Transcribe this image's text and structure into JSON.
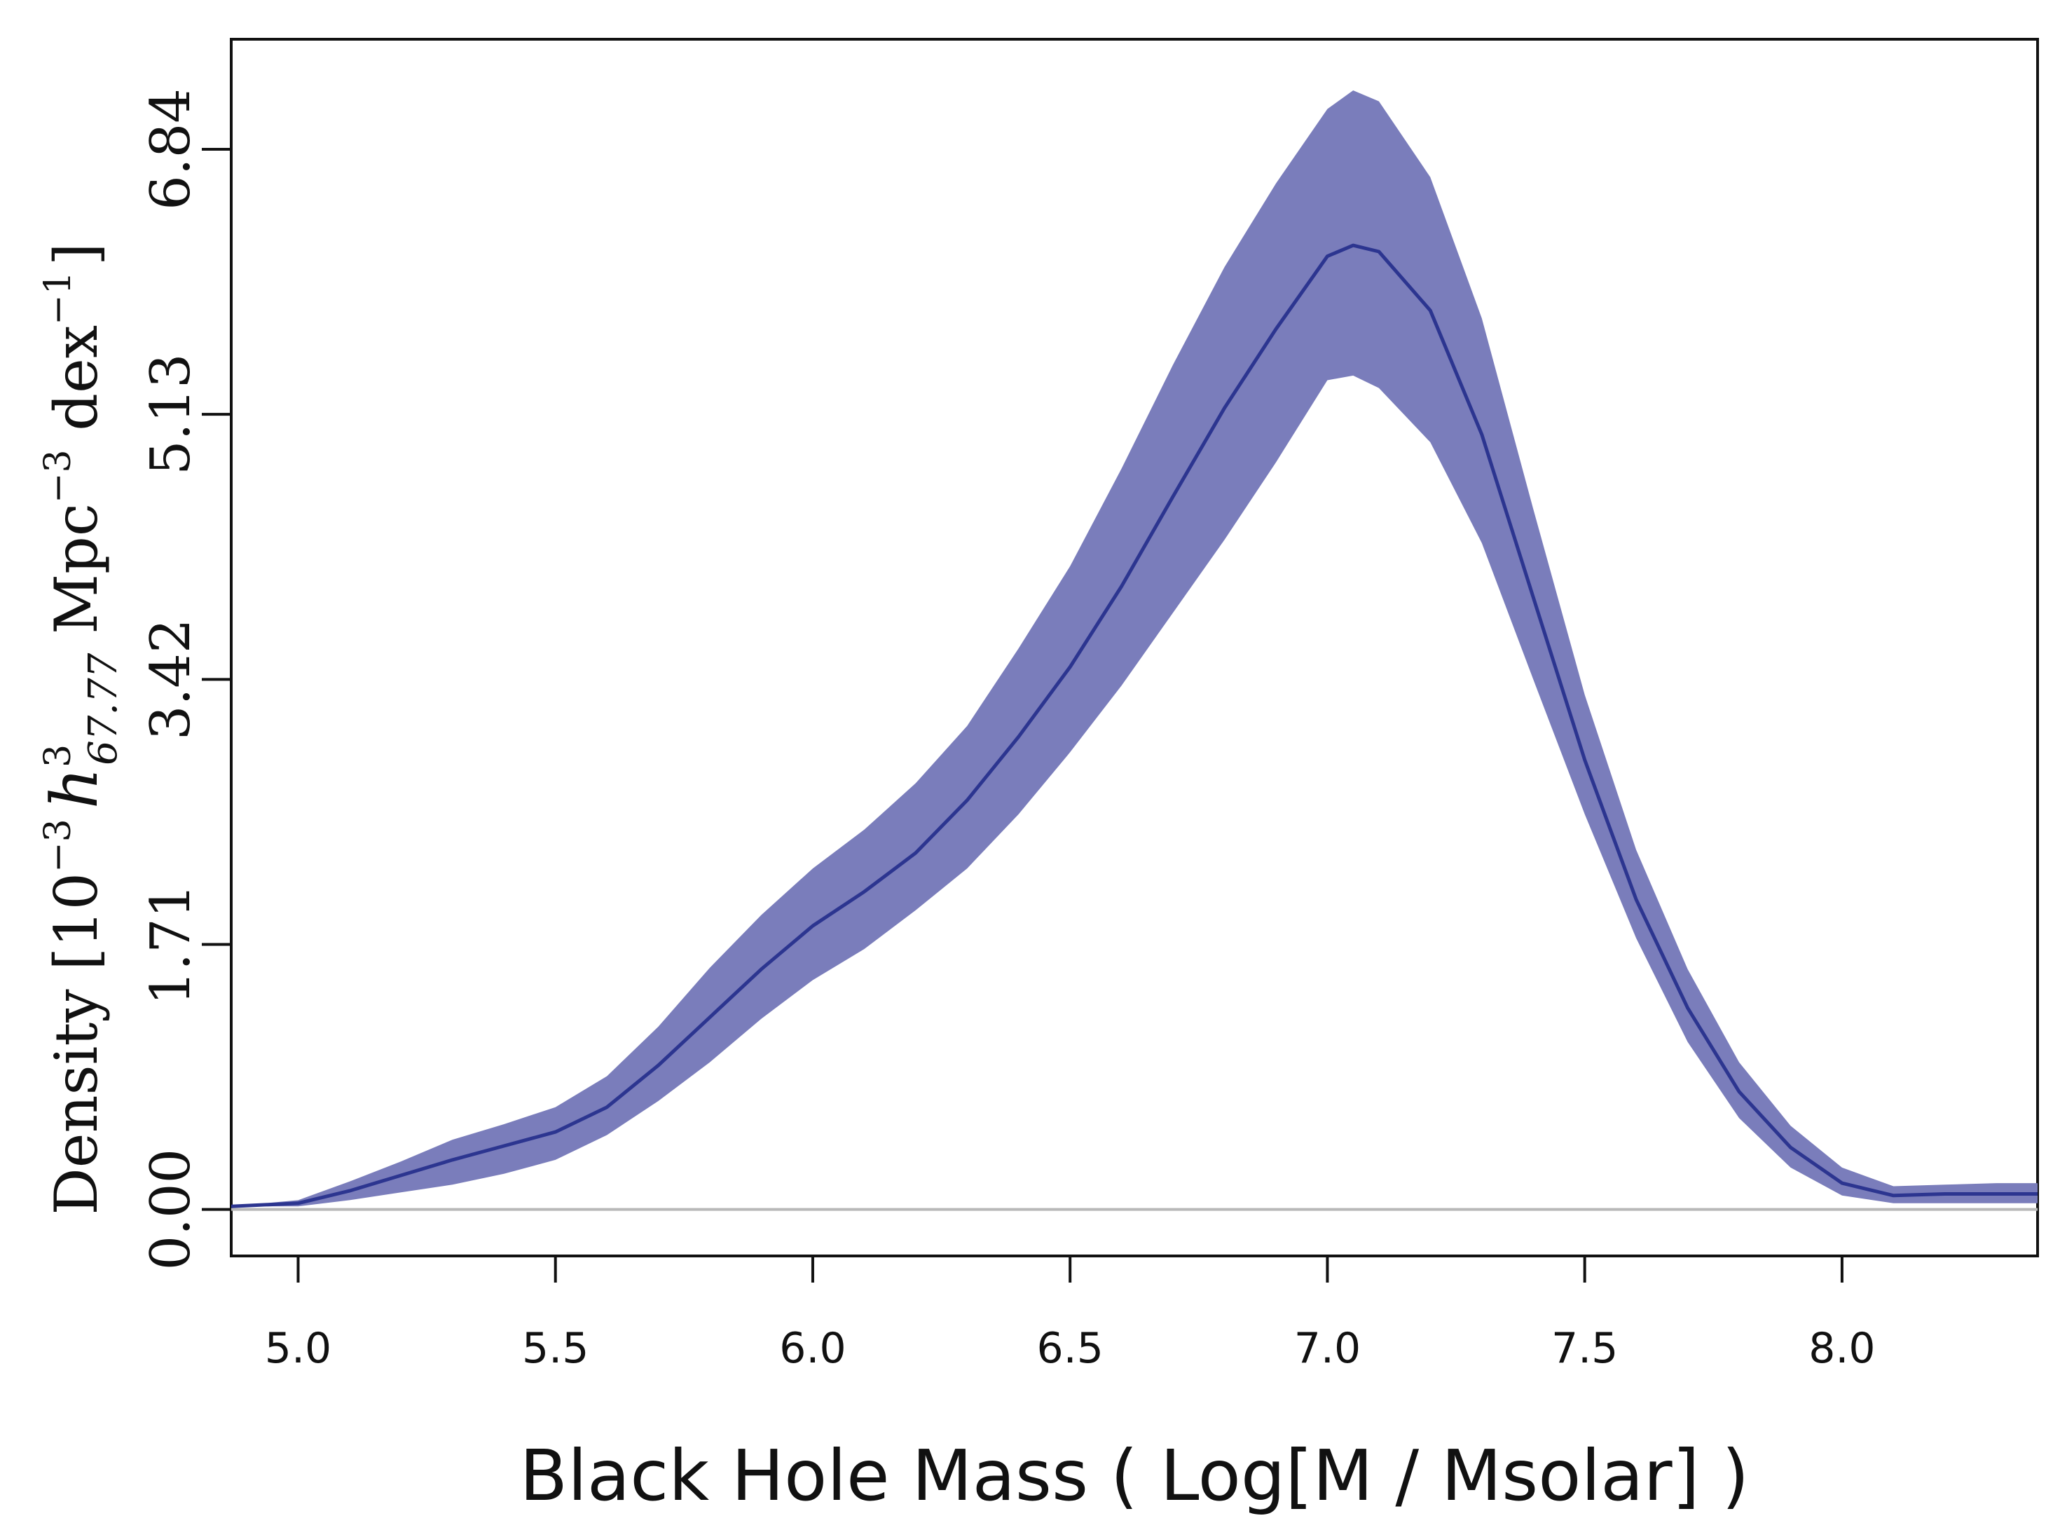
{
  "chart_data": {
    "type": "area",
    "title": "",
    "xlabel": "Black Hole Mass ( Log[M / Msolar] )",
    "ylabel": {
      "prefix": "Density [10",
      "exp1": "−3",
      "h": "h",
      "h_sup": "3",
      "h_sub": "67.77",
      "mpc": " Mpc",
      "exp2": "−3",
      "dex": " dex",
      "exp3": "−1",
      "suffix": "]"
    },
    "xlim": [
      4.87,
      8.38
    ],
    "ylim": [
      -0.3,
      7.55
    ],
    "x_ticks": [
      "5.0",
      "5.5",
      "6.0",
      "6.5",
      "7.0",
      "7.5",
      "8.0"
    ],
    "x_tick_values": [
      5.0,
      5.5,
      6.0,
      6.5,
      7.0,
      7.5,
      8.0
    ],
    "y_ticks": [
      "0.00",
      "1.71",
      "3.42",
      "5.13",
      "6.84"
    ],
    "y_tick_values": [
      0.0,
      1.71,
      3.42,
      5.13,
      6.84
    ],
    "baseline": 0.0,
    "colors": {
      "band": "#7a7dbb",
      "median": "#2c3590",
      "baseline": "#b8b8b8",
      "axis": "#111111"
    },
    "series": [
      {
        "name": "median",
        "x": [
          4.87,
          5.0,
          5.1,
          5.2,
          5.3,
          5.4,
          5.5,
          5.6,
          5.7,
          5.8,
          5.9,
          6.0,
          6.1,
          6.2,
          6.3,
          6.4,
          6.5,
          6.6,
          6.7,
          6.8,
          6.9,
          7.0,
          7.05,
          7.1,
          7.2,
          7.3,
          7.4,
          7.5,
          7.6,
          7.7,
          7.8,
          7.9,
          8.0,
          8.1,
          8.2,
          8.3,
          8.38
        ],
        "values": [
          0.02,
          0.04,
          0.12,
          0.22,
          0.32,
          0.41,
          0.5,
          0.66,
          0.93,
          1.24,
          1.55,
          1.83,
          2.05,
          2.3,
          2.64,
          3.05,
          3.5,
          4.02,
          4.6,
          5.17,
          5.68,
          6.15,
          6.22,
          6.18,
          5.8,
          5.0,
          3.95,
          2.9,
          2.0,
          1.3,
          0.76,
          0.4,
          0.17,
          0.09,
          0.1,
          0.1,
          0.1
        ]
      },
      {
        "name": "upper",
        "x": [
          4.87,
          5.0,
          5.1,
          5.2,
          5.3,
          5.4,
          5.5,
          5.6,
          5.7,
          5.8,
          5.9,
          6.0,
          6.1,
          6.2,
          6.3,
          6.4,
          6.5,
          6.6,
          6.7,
          6.8,
          6.9,
          7.0,
          7.05,
          7.1,
          7.2,
          7.3,
          7.4,
          7.5,
          7.6,
          7.7,
          7.8,
          7.9,
          8.0,
          8.1,
          8.2,
          8.3,
          8.38
        ],
        "values": [
          0.02,
          0.06,
          0.18,
          0.31,
          0.45,
          0.55,
          0.66,
          0.86,
          1.18,
          1.56,
          1.9,
          2.2,
          2.45,
          2.75,
          3.12,
          3.62,
          4.15,
          4.78,
          5.45,
          6.08,
          6.62,
          7.1,
          7.22,
          7.15,
          6.66,
          5.75,
          4.52,
          3.32,
          2.32,
          1.55,
          0.95,
          0.54,
          0.27,
          0.15,
          0.16,
          0.17,
          0.17
        ]
      },
      {
        "name": "lower",
        "x": [
          4.87,
          5.0,
          5.1,
          5.2,
          5.3,
          5.4,
          5.5,
          5.6,
          5.7,
          5.8,
          5.9,
          6.0,
          6.1,
          6.2,
          6.3,
          6.4,
          6.5,
          6.6,
          6.7,
          6.8,
          6.9,
          7.0,
          7.05,
          7.1,
          7.2,
          7.3,
          7.4,
          7.5,
          7.6,
          7.7,
          7.8,
          7.9,
          8.0,
          8.1,
          8.2,
          8.3,
          8.38
        ],
        "values": [
          0.02,
          0.02,
          0.06,
          0.11,
          0.16,
          0.23,
          0.32,
          0.48,
          0.7,
          0.95,
          1.23,
          1.48,
          1.68,
          1.93,
          2.2,
          2.55,
          2.95,
          3.38,
          3.85,
          4.32,
          4.82,
          5.35,
          5.38,
          5.3,
          4.95,
          4.3,
          3.42,
          2.55,
          1.75,
          1.08,
          0.59,
          0.27,
          0.09,
          0.04,
          0.04,
          0.04,
          0.04
        ]
      }
    ],
    "grid": false,
    "legend": "none"
  }
}
